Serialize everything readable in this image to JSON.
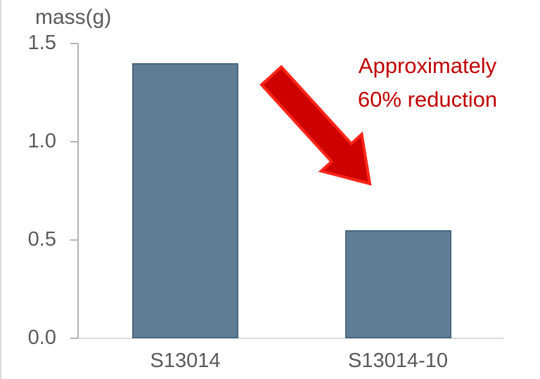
{
  "chart_data": {
    "type": "bar",
    "title": "mass(g)",
    "ylabel": "mass(g)",
    "xlabel": "",
    "categories": [
      "S13014",
      "S13014-10"
    ],
    "values": [
      1.4,
      0.55
    ],
    "ylim": [
      0,
      1.5
    ],
    "yticks": [
      0,
      0.5,
      1,
      1.5
    ],
    "ytick_labels": [
      "0.0",
      "0.5",
      "1.0",
      "1.5"
    ],
    "grid": false,
    "legend_position": "none",
    "bar_fill_color": "#5f7d94",
    "bar_border_color": "#47687f",
    "axis_color": "#b3b3b3",
    "baseline_color": "#d9d9d9",
    "tick_text_color": "#595959",
    "annotation": {
      "line1": "Approximately",
      "line2": "60% reduction",
      "text_color": "#c00000",
      "arrow_fill_color": "#cf0100",
      "arrow_stroke_color": "#ff2619"
    }
  }
}
